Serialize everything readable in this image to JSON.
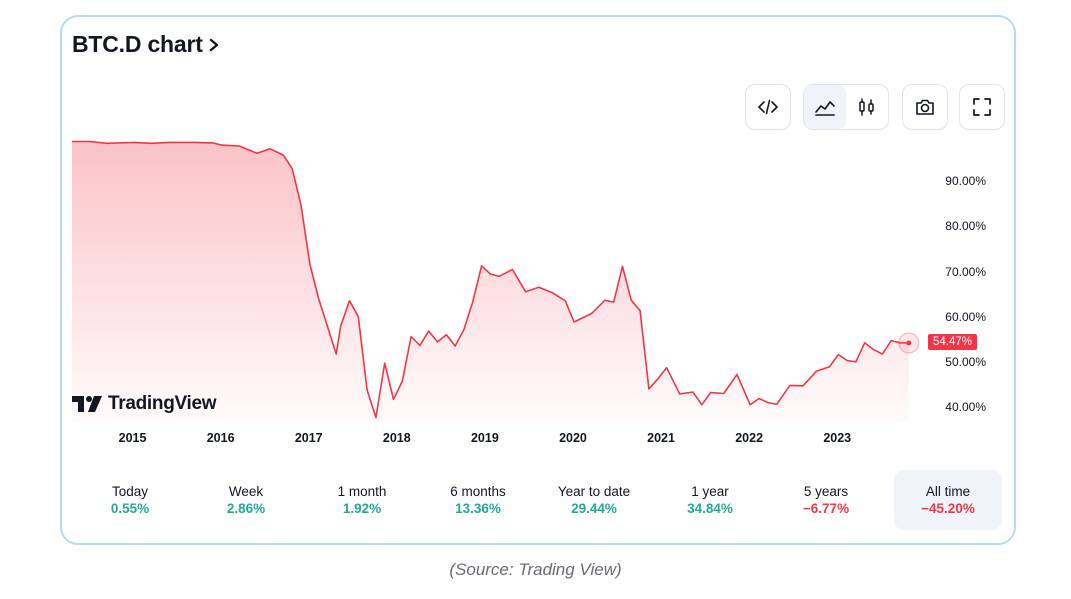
{
  "widget": {
    "title": "BTC.D chart",
    "logo_text": "TradingView",
    "current_value_label": "54.47%",
    "accent_color": "#f23645",
    "positive_color": "#22ab94",
    "negative_color": "#f23645",
    "toolbar": {
      "embed_icon": "code-icon",
      "area_icon": "area-chart-icon",
      "candles_icon": "candlestick-icon",
      "snapshot_icon": "camera-icon",
      "fullscreen_icon": "fullscreen-icon",
      "active_style": "area"
    }
  },
  "periods": [
    {
      "label": "Today",
      "value": "0.55%",
      "sign": "positive"
    },
    {
      "label": "Week",
      "value": "2.86%",
      "sign": "positive"
    },
    {
      "label": "1 month",
      "value": "1.92%",
      "sign": "positive"
    },
    {
      "label": "6 months",
      "value": "13.36%",
      "sign": "positive"
    },
    {
      "label": "Year to date",
      "value": "29.44%",
      "sign": "positive"
    },
    {
      "label": "1 year",
      "value": "34.84%",
      "sign": "positive"
    },
    {
      "label": "5 years",
      "value": "−6.77%",
      "sign": "negative"
    },
    {
      "label": "All time",
      "value": "−45.20%",
      "sign": "negative",
      "active": true
    }
  ],
  "caption": "(Source: Trading View)",
  "chart_data": {
    "type": "area",
    "title": "",
    "xlabel": "",
    "ylabel": "",
    "x_ticks": [
      "2015",
      "2016",
      "2017",
      "2018",
      "2019",
      "2020",
      "2021",
      "2022",
      "2023"
    ],
    "y_ticks": [
      "40.00%",
      "50.00%",
      "60.00%",
      "70.00%",
      "80.00%",
      "90.00%"
    ],
    "ylim": [
      37,
      100
    ],
    "xlim": [
      2014.3,
      2023.95
    ],
    "grid": false,
    "series": [
      {
        "x": [
          2014.3,
          2014.5,
          2014.7,
          2015.0,
          2015.2,
          2015.4,
          2015.7,
          2015.9,
          2016.0,
          2016.2,
          2016.4,
          2016.55,
          2016.7,
          2016.8,
          2016.9,
          2017.0,
          2017.1,
          2017.2,
          2017.3,
          2017.35,
          2017.45,
          2017.55,
          2017.65,
          2017.75,
          2017.85,
          2017.95,
          2018.05,
          2018.15,
          2018.25,
          2018.35,
          2018.45,
          2018.55,
          2018.65,
          2018.75,
          2018.85,
          2018.95,
          2019.05,
          2019.15,
          2019.3,
          2019.45,
          2019.6,
          2019.75,
          2019.9,
          2020.0,
          2020.2,
          2020.35,
          2020.45,
          2020.55,
          2020.65,
          2020.75,
          2020.85,
          2020.95,
          2021.05,
          2021.2,
          2021.35,
          2021.45,
          2021.55,
          2021.7,
          2021.85,
          2022.0,
          2022.1,
          2022.2,
          2022.3,
          2022.45,
          2022.6,
          2022.75,
          2022.9,
          2023.0,
          2023.1,
          2023.2,
          2023.3,
          2023.4,
          2023.5,
          2023.6,
          2023.7,
          2023.8
        ],
        "values": [
          99.0,
          99.0,
          98.6,
          98.8,
          98.6,
          98.8,
          98.8,
          98.7,
          98.2,
          98.0,
          96.4,
          97.4,
          96.0,
          93.0,
          85.0,
          72.0,
          64.3,
          58.2,
          52.0,
          58.2,
          63.8,
          60.3,
          44.1,
          38.0,
          50.0,
          42.0,
          46.0,
          55.9,
          53.9,
          57.1,
          54.7,
          56.3,
          53.8,
          57.5,
          63.6,
          71.5,
          69.7,
          69.2,
          70.7,
          65.8,
          66.8,
          65.6,
          63.8,
          59.1,
          61.0,
          63.9,
          63.5,
          71.4,
          63.9,
          61.6,
          44.3,
          46.5,
          49.0,
          43.2,
          43.6,
          40.8,
          43.5,
          43.3,
          47.5,
          40.8,
          42.2,
          41.3,
          40.9,
          45.1,
          45.0,
          48.2,
          49.2,
          51.9,
          50.6,
          50.3,
          54.5,
          53.0,
          52.0,
          55.0,
          54.5,
          54.47
        ]
      }
    ],
    "line_color": "#f23645"
  }
}
